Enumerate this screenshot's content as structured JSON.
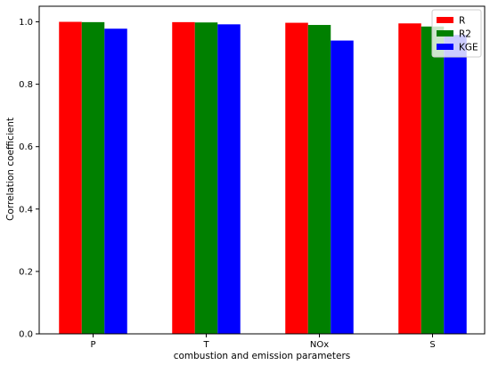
{
  "chart_data": {
    "type": "bar",
    "title": "",
    "xlabel": "combustion and emission parameters",
    "ylabel": "Correlation coefficient",
    "categories": [
      "P",
      "T",
      "NOx",
      "S"
    ],
    "ylim": [
      0.0,
      1.05
    ],
    "yticks": [
      0.0,
      0.2,
      0.4,
      0.6,
      0.8,
      1.0
    ],
    "ytick_labels": [
      "0.0",
      "0.2",
      "0.4",
      "0.6",
      "0.8",
      "1.0"
    ],
    "grid": false,
    "legend_position": "top-right",
    "series": [
      {
        "name": "R",
        "color": "#ff0000",
        "values": [
          1.0,
          0.999,
          0.997,
          0.995
        ]
      },
      {
        "name": "R2",
        "color": "#008000",
        "values": [
          0.999,
          0.998,
          0.99,
          0.985
        ]
      },
      {
        "name": "KGE",
        "color": "#0000ff",
        "values": [
          0.978,
          0.992,
          0.94,
          0.958
        ]
      }
    ]
  }
}
